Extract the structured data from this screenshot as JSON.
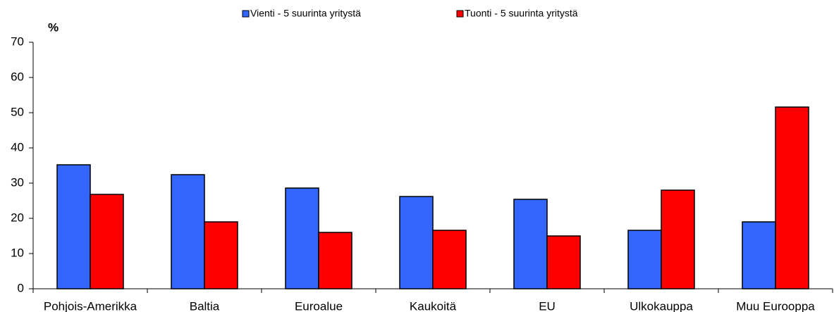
{
  "chart_data": {
    "type": "bar",
    "ylabel": "%",
    "categories": [
      "Pohjois-Amerikka",
      "Baltia",
      "Euroalue",
      "Kaukoitä",
      "EU",
      "Ulkokauppa",
      "Muu Eurooppa"
    ],
    "series": [
      {
        "name": "Vienti - 5 suurinta yritystä",
        "color": "#3366ff",
        "values": [
          35.2,
          32.4,
          28.6,
          26.2,
          25.4,
          16.6,
          19
        ]
      },
      {
        "name": "Tuonti - 5 suurinta yritystä",
        "color": "#ff0000",
        "values": [
          26.8,
          19,
          16,
          16.6,
          15,
          28,
          51.6
        ]
      }
    ],
    "ylim": [
      0,
      70
    ],
    "yticks": [
      0,
      10,
      20,
      30,
      40,
      50,
      60,
      70
    ],
    "legend": "top"
  }
}
